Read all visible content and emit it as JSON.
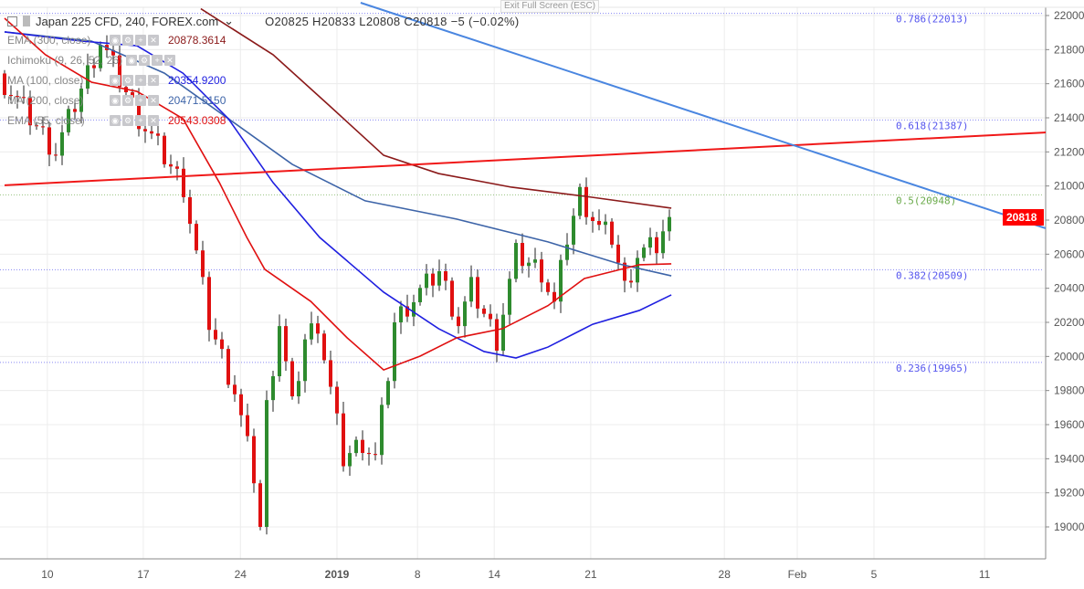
{
  "header": {
    "symbol": "Japan 225 CFD, 240, FOREX.com",
    "ohlc": "O20825  H20833  L20808  C20818  −5 (−0.02%)",
    "tooltip": "Exit Full Screen (ESC)",
    "last_price": "20818"
  },
  "indicators": [
    {
      "name": "EMA (300, close)",
      "value": "20878.3614",
      "color": "#8b1a1a"
    },
    {
      "name": "Ichimoku (9, 26, 52, 26)",
      "value": "",
      "color": "#888888"
    },
    {
      "name": "MA (100, close)",
      "value": "20354.9200",
      "color": "#1f1fe0"
    },
    {
      "name": "MA (200, close)",
      "value": "20471.5150",
      "color": "#3d64a8"
    },
    {
      "name": "EMA (55, close)",
      "value": "20543.0308",
      "color": "#e01010"
    }
  ],
  "chart_data": {
    "type": "candlestick",
    "title": "Japan 225 CFD, 240, FOREX.com",
    "ylim": [
      18800,
      22080
    ],
    "y_ticks": [
      "22000",
      "21800",
      "21600",
      "21400",
      "21200",
      "21000",
      "20800",
      "20600",
      "20400",
      "20200",
      "20000",
      "19800",
      "19600",
      "19400",
      "19200",
      "19000"
    ],
    "x_ticks": [
      {
        "label": "10",
        "index": 6.7
      },
      {
        "label": "17",
        "index": 21.7
      },
      {
        "label": "24",
        "index": 36.9
      },
      {
        "label": "2019",
        "index": 52
      },
      {
        "label": "8",
        "index": 64.6
      },
      {
        "label": "14",
        "index": 76.6
      },
      {
        "label": "21",
        "index": 91.7
      },
      {
        "label": "28",
        "index": 112.6
      },
      {
        "label": "Feb",
        "index": 124
      },
      {
        "label": "5",
        "index": 136
      },
      {
        "label": "11",
        "index": 153.3
      }
    ],
    "x_max_index": 163,
    "close_keypoints": [
      [
        0,
        21600
      ],
      [
        8,
        21200
      ],
      [
        15,
        21850
      ],
      [
        21,
        21400
      ],
      [
        28,
        21000
      ],
      [
        30,
        20600
      ],
      [
        32,
        20200
      ],
      [
        36,
        19800
      ],
      [
        39,
        19300
      ],
      [
        40,
        19000
      ],
      [
        41,
        19700
      ],
      [
        43,
        20200
      ],
      [
        45,
        19700
      ],
      [
        47,
        20100
      ],
      [
        49,
        20200
      ],
      [
        51,
        19800
      ],
      [
        53,
        19400
      ],
      [
        56,
        19500
      ],
      [
        58,
        19400
      ],
      [
        60,
        19900
      ],
      [
        61,
        20200
      ],
      [
        63,
        20300
      ],
      [
        68,
        20500
      ],
      [
        71,
        20200
      ],
      [
        73,
        20400
      ],
      [
        77,
        20100
      ],
      [
        80,
        20600
      ],
      [
        84,
        20500
      ],
      [
        86,
        20300
      ],
      [
        88,
        20700
      ],
      [
        90,
        20950
      ],
      [
        93,
        20750
      ],
      [
        95,
        20700
      ],
      [
        97,
        20400
      ],
      [
        99,
        20600
      ],
      [
        102,
        20650
      ],
      [
        104,
        20818
      ]
    ],
    "moving_averages": [
      {
        "name": "EMA (300, close)",
        "color": "#8b1a1a",
        "points": [
          [
            30.7,
            22040
          ],
          [
            42,
            21770
          ],
          [
            50.7,
            21475
          ],
          [
            59.3,
            21180
          ],
          [
            67.9,
            21073
          ],
          [
            79.3,
            20993
          ],
          [
            90.7,
            20940
          ],
          [
            104.3,
            20870
          ]
        ]
      },
      {
        "name": "MA (200, close)",
        "color": "#3d64a8",
        "points": [
          [
            0,
            21904
          ],
          [
            13.6,
            21850
          ],
          [
            25,
            21662
          ],
          [
            35,
            21395
          ],
          [
            45,
            21127
          ],
          [
            56.4,
            20913
          ],
          [
            70.7,
            20806
          ],
          [
            85,
            20672
          ],
          [
            96.4,
            20540
          ],
          [
            104.3,
            20473
          ]
        ]
      },
      {
        "name": "MA (100, close)",
        "color": "#1f1fe0",
        "points": [
          [
            0,
            21904
          ],
          [
            12,
            21850
          ],
          [
            20.7,
            21823
          ],
          [
            27.9,
            21662
          ],
          [
            35,
            21395
          ],
          [
            42,
            21020
          ],
          [
            49.3,
            20698
          ],
          [
            59.3,
            20377
          ],
          [
            67.9,
            20163
          ],
          [
            75,
            20029
          ],
          [
            80,
            19991
          ],
          [
            85,
            20055
          ],
          [
            92,
            20189
          ],
          [
            99.3,
            20270
          ],
          [
            104.3,
            20361
          ]
        ]
      },
      {
        "name": "EMA (55, close)",
        "color": "#e01010",
        "points": [
          [
            0,
            21984
          ],
          [
            6.4,
            21770
          ],
          [
            13.6,
            21609
          ],
          [
            20.7,
            21555
          ],
          [
            27.9,
            21395
          ],
          [
            33.6,
            21020
          ],
          [
            37.9,
            20698
          ],
          [
            40.7,
            20511
          ],
          [
            47.9,
            20323
          ],
          [
            53.6,
            20109
          ],
          [
            59.3,
            19921
          ],
          [
            65,
            20002
          ],
          [
            70.7,
            20109
          ],
          [
            77.9,
            20163
          ],
          [
            85,
            20298
          ],
          [
            90.7,
            20457
          ],
          [
            99.3,
            20538
          ],
          [
            104.3,
            20543
          ]
        ]
      }
    ],
    "trend_lines": [
      {
        "color": "#f01818",
        "from": [
          0,
          21004
        ],
        "to": [
          163,
          21314
        ]
      },
      {
        "color": "#4a86e0",
        "from": [
          55.7,
          22075
        ],
        "to": [
          163,
          20752
        ]
      }
    ],
    "fib_levels": [
      {
        "label": "0.786(22013)",
        "value": 22013,
        "color": "#5555ee"
      },
      {
        "label": "0.618(21387)",
        "value": 21387,
        "color": "#5555ee"
      },
      {
        "label": "0.5(20948)",
        "value": 20948,
        "color": "#6aaa4a"
      },
      {
        "label": "0.382(20509)",
        "value": 20509,
        "color": "#5555ee"
      },
      {
        "label": "0.236(19965)",
        "value": 19965,
        "color": "#5555ee"
      }
    ],
    "up_color": "#2e8b2e",
    "down_color": "#e01010"
  }
}
